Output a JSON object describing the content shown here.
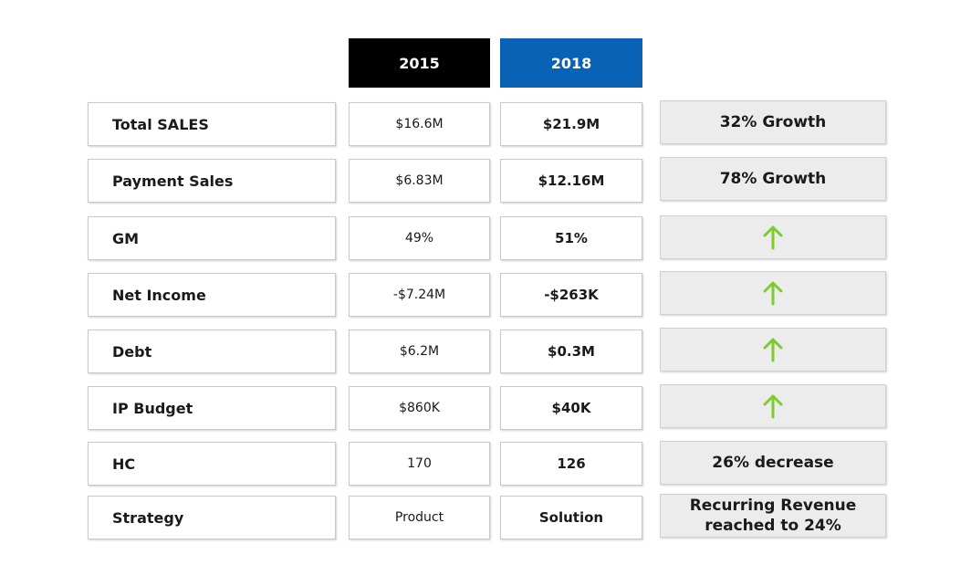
{
  "headers": {
    "year_a": "2015",
    "year_b": "2018"
  },
  "colors": {
    "header_a": "#000000",
    "header_b": "#0a62b6",
    "arrow": "#7dcc2e"
  },
  "rows": [
    {
      "label": "Total SALES",
      "val_2015": "$16.6M",
      "val_2018": "$21.9M",
      "note": "32% Growth"
    },
    {
      "label": "Payment Sales",
      "val_2015": "$6.83M",
      "val_2018": "$12.16M",
      "note": "78% Growth"
    },
    {
      "label": "GM",
      "val_2015": "49%",
      "val_2018": "51%",
      "note_icon": "up-arrow-icon"
    },
    {
      "label": "Net Income",
      "val_2015": "-$7.24M",
      "val_2018": "-$263K",
      "note_icon": "up-arrow-icon"
    },
    {
      "label": "Debt",
      "val_2015": "$6.2M",
      "val_2018": "$0.3M",
      "note_icon": "up-arrow-icon"
    },
    {
      "label": "IP Budget",
      "val_2015": "$860K",
      "val_2018": "$40K",
      "note_icon": "up-arrow-icon"
    },
    {
      "label": "HC",
      "val_2015": "170",
      "val_2018": "126",
      "note": "26% decrease"
    },
    {
      "label": "Strategy",
      "val_2015": "Product",
      "val_2018": "Solution",
      "note_line1": "Recurring Revenue",
      "note_line2": "reached to 24%"
    }
  ]
}
